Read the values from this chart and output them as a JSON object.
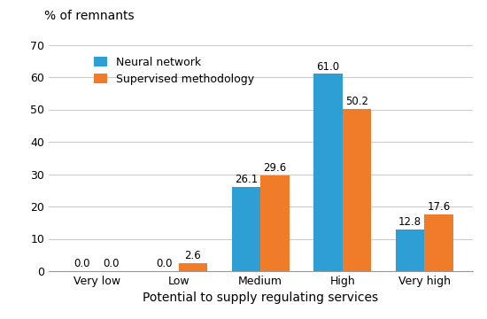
{
  "categories": [
    "Very low",
    "Low",
    "Medium",
    "High",
    "Very high"
  ],
  "neural_network": [
    0.0,
    0.0,
    26.1,
    61.0,
    12.8
  ],
  "supervised_methodology": [
    0.0,
    2.6,
    29.6,
    50.2,
    17.6
  ],
  "bar_color_neural": "#2E9FD4",
  "bar_color_supervised": "#F07C29",
  "ylabel_title": "% of remnants",
  "xlabel": "Potential to supply regulating services",
  "legend_neural": "Neural network",
  "legend_supervised": "Supervised methodology",
  "ylim": [
    0,
    72
  ],
  "yticks": [
    0,
    10,
    20,
    30,
    40,
    50,
    60,
    70
  ],
  "bar_width": 0.35,
  "label_fontsize": 8.5,
  "axis_label_fontsize": 10,
  "tick_fontsize": 9,
  "legend_fontsize": 9,
  "title_fontsize": 10
}
